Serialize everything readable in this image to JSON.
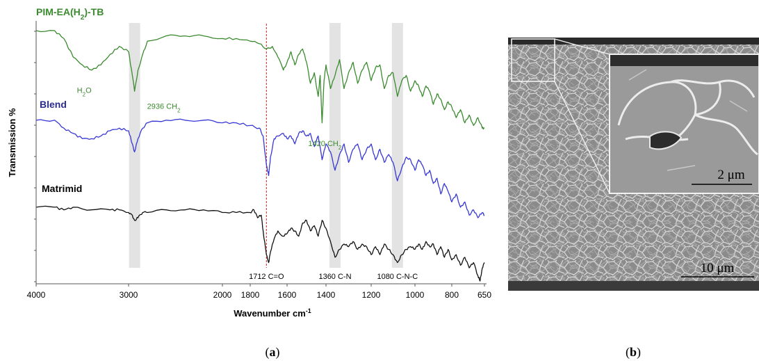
{
  "chart_data": {
    "type": "line",
    "xlabel": "Wavenumber cm",
    "xlabel_sup": "-1",
    "ylabel": "Transmission %",
    "x_reversed": true,
    "x_tick_labels": [
      "4000",
      "3000",
      "2000",
      "1800",
      "1600",
      "1400",
      "1200",
      "1000",
      "800",
      "650"
    ],
    "x_ticks": [
      4000,
      3000,
      2000,
      1800,
      1600,
      1400,
      1200,
      1000,
      800,
      650
    ],
    "highlight_bands": [
      2936,
      1360,
      1080
    ],
    "reference_line": 1712,
    "series": [
      {
        "name": "PIM-EA(H",
        "name_sub": "2",
        "name_tail": ")-TB",
        "color": "#3a8a2e",
        "values": [
          [
            4000,
            0.95
          ],
          [
            3800,
            0.95
          ],
          [
            3700,
            0.92
          ],
          [
            3600,
            0.85
          ],
          [
            3500,
            0.82
          ],
          [
            3400,
            0.8
          ],
          [
            3300,
            0.82
          ],
          [
            3200,
            0.86
          ],
          [
            3100,
            0.89
          ],
          [
            3000,
            0.87
          ],
          [
            2960,
            0.78
          ],
          [
            2936,
            0.72
          ],
          [
            2900,
            0.8
          ],
          [
            2850,
            0.86
          ],
          [
            2800,
            0.91
          ],
          [
            2600,
            0.93
          ],
          [
            2400,
            0.93
          ],
          [
            2200,
            0.93
          ],
          [
            2000,
            0.92
          ],
          [
            1900,
            0.92
          ],
          [
            1800,
            0.91
          ],
          [
            1750,
            0.9
          ],
          [
            1712,
            0.88
          ],
          [
            1680,
            0.89
          ],
          [
            1650,
            0.85
          ],
          [
            1620,
            0.8
          ],
          [
            1600,
            0.83
          ],
          [
            1580,
            0.87
          ],
          [
            1560,
            0.82
          ],
          [
            1540,
            0.86
          ],
          [
            1520,
            0.88
          ],
          [
            1500,
            0.83
          ],
          [
            1480,
            0.75
          ],
          [
            1460,
            0.79
          ],
          [
            1440,
            0.7
          ],
          [
            1430,
            0.78
          ],
          [
            1420,
            0.6
          ],
          [
            1410,
            0.76
          ],
          [
            1400,
            0.82
          ],
          [
            1380,
            0.73
          ],
          [
            1360,
            0.78
          ],
          [
            1340,
            0.84
          ],
          [
            1320,
            0.73
          ],
          [
            1300,
            0.79
          ],
          [
            1280,
            0.83
          ],
          [
            1260,
            0.75
          ],
          [
            1240,
            0.8
          ],
          [
            1220,
            0.83
          ],
          [
            1200,
            0.76
          ],
          [
            1180,
            0.81
          ],
          [
            1160,
            0.82
          ],
          [
            1140,
            0.73
          ],
          [
            1120,
            0.78
          ],
          [
            1100,
            0.79
          ],
          [
            1080,
            0.7
          ],
          [
            1060,
            0.76
          ],
          [
            1040,
            0.78
          ],
          [
            1020,
            0.72
          ],
          [
            1000,
            0.76
          ],
          [
            980,
            0.74
          ],
          [
            960,
            0.7
          ],
          [
            940,
            0.74
          ],
          [
            920,
            0.72
          ],
          [
            900,
            0.67
          ],
          [
            880,
            0.71
          ],
          [
            860,
            0.69
          ],
          [
            840,
            0.65
          ],
          [
            820,
            0.68
          ],
          [
            800,
            0.66
          ],
          [
            780,
            0.62
          ],
          [
            760,
            0.65
          ],
          [
            740,
            0.6
          ],
          [
            720,
            0.63
          ],
          [
            700,
            0.59
          ],
          [
            680,
            0.62
          ],
          [
            660,
            0.58
          ],
          [
            650,
            0.58
          ]
        ]
      },
      {
        "name": "Blend",
        "color": "#3737d6",
        "values": [
          [
            4000,
            0.61
          ],
          [
            3800,
            0.61
          ],
          [
            3700,
            0.58
          ],
          [
            3600,
            0.56
          ],
          [
            3500,
            0.54
          ],
          [
            3400,
            0.54
          ],
          [
            3300,
            0.55
          ],
          [
            3200,
            0.57
          ],
          [
            3100,
            0.58
          ],
          [
            3000,
            0.57
          ],
          [
            2960,
            0.52
          ],
          [
            2936,
            0.49
          ],
          [
            2900,
            0.54
          ],
          [
            2850,
            0.58
          ],
          [
            2800,
            0.6
          ],
          [
            2600,
            0.61
          ],
          [
            2400,
            0.61
          ],
          [
            2200,
            0.61
          ],
          [
            2000,
            0.6
          ],
          [
            1900,
            0.6
          ],
          [
            1800,
            0.59
          ],
          [
            1750,
            0.58
          ],
          [
            1730,
            0.55
          ],
          [
            1712,
            0.44
          ],
          [
            1700,
            0.4
          ],
          [
            1690,
            0.47
          ],
          [
            1670,
            0.54
          ],
          [
            1650,
            0.55
          ],
          [
            1620,
            0.56
          ],
          [
            1600,
            0.54
          ],
          [
            1580,
            0.55
          ],
          [
            1560,
            0.52
          ],
          [
            1540,
            0.56
          ],
          [
            1520,
            0.57
          ],
          [
            1500,
            0.55
          ],
          [
            1480,
            0.56
          ],
          [
            1460,
            0.51
          ],
          [
            1440,
            0.55
          ],
          [
            1420,
            0.46
          ],
          [
            1400,
            0.52
          ],
          [
            1380,
            0.49
          ],
          [
            1360,
            0.42
          ],
          [
            1340,
            0.48
          ],
          [
            1320,
            0.52
          ],
          [
            1300,
            0.45
          ],
          [
            1280,
            0.5
          ],
          [
            1260,
            0.52
          ],
          [
            1240,
            0.46
          ],
          [
            1220,
            0.5
          ],
          [
            1200,
            0.52
          ],
          [
            1180,
            0.46
          ],
          [
            1160,
            0.5
          ],
          [
            1140,
            0.45
          ],
          [
            1120,
            0.48
          ],
          [
            1100,
            0.45
          ],
          [
            1080,
            0.38
          ],
          [
            1060,
            0.43
          ],
          [
            1040,
            0.47
          ],
          [
            1020,
            0.46
          ],
          [
            1000,
            0.42
          ],
          [
            980,
            0.46
          ],
          [
            960,
            0.44
          ],
          [
            940,
            0.4
          ],
          [
            920,
            0.42
          ],
          [
            900,
            0.37
          ],
          [
            880,
            0.39
          ],
          [
            860,
            0.33
          ],
          [
            840,
            0.37
          ],
          [
            820,
            0.34
          ],
          [
            800,
            0.3
          ],
          [
            780,
            0.33
          ],
          [
            760,
            0.28
          ],
          [
            740,
            0.3
          ],
          [
            720,
            0.25
          ],
          [
            700,
            0.27
          ],
          [
            680,
            0.24
          ],
          [
            660,
            0.26
          ],
          [
            650,
            0.25
          ]
        ]
      },
      {
        "name": "Matrimid",
        "color": "#111111",
        "values": [
          [
            4000,
            0.28
          ],
          [
            3800,
            0.28
          ],
          [
            3700,
            0.27
          ],
          [
            3600,
            0.28
          ],
          [
            3400,
            0.27
          ],
          [
            3200,
            0.27
          ],
          [
            3100,
            0.27
          ],
          [
            3000,
            0.26
          ],
          [
            2960,
            0.25
          ],
          [
            2936,
            0.23
          ],
          [
            2900,
            0.24
          ],
          [
            2850,
            0.26
          ],
          [
            2800,
            0.26
          ],
          [
            2600,
            0.27
          ],
          [
            2400,
            0.27
          ],
          [
            2200,
            0.27
          ],
          [
            2000,
            0.26
          ],
          [
            1900,
            0.26
          ],
          [
            1800,
            0.26
          ],
          [
            1780,
            0.27
          ],
          [
            1760,
            0.24
          ],
          [
            1740,
            0.25
          ],
          [
            1730,
            0.19
          ],
          [
            1712,
            0.1
          ],
          [
            1700,
            0.07
          ],
          [
            1690,
            0.11
          ],
          [
            1670,
            0.16
          ],
          [
            1650,
            0.19
          ],
          [
            1620,
            0.17
          ],
          [
            1600,
            0.18
          ],
          [
            1580,
            0.2
          ],
          [
            1560,
            0.19
          ],
          [
            1540,
            0.17
          ],
          [
            1520,
            0.22
          ],
          [
            1500,
            0.23
          ],
          [
            1480,
            0.19
          ],
          [
            1460,
            0.21
          ],
          [
            1440,
            0.17
          ],
          [
            1420,
            0.23
          ],
          [
            1400,
            0.2
          ],
          [
            1380,
            0.15
          ],
          [
            1360,
            0.09
          ],
          [
            1340,
            0.12
          ],
          [
            1320,
            0.14
          ],
          [
            1300,
            0.13
          ],
          [
            1280,
            0.15
          ],
          [
            1260,
            0.12
          ],
          [
            1240,
            0.14
          ],
          [
            1220,
            0.13
          ],
          [
            1200,
            0.1
          ],
          [
            1180,
            0.13
          ],
          [
            1160,
            0.1
          ],
          [
            1140,
            0.14
          ],
          [
            1120,
            0.12
          ],
          [
            1100,
            0.1
          ],
          [
            1080,
            0.07
          ],
          [
            1060,
            0.1
          ],
          [
            1040,
            0.12
          ],
          [
            1020,
            0.13
          ],
          [
            1000,
            0.12
          ],
          [
            980,
            0.14
          ],
          [
            960,
            0.12
          ],
          [
            940,
            0.15
          ],
          [
            920,
            0.13
          ],
          [
            900,
            0.14
          ],
          [
            880,
            0.1
          ],
          [
            860,
            0.13
          ],
          [
            840,
            0.09
          ],
          [
            820,
            0.12
          ],
          [
            800,
            0.08
          ],
          [
            780,
            0.1
          ],
          [
            760,
            0.06
          ],
          [
            740,
            0.09
          ],
          [
            720,
            0.05
          ],
          [
            700,
            0.07
          ],
          [
            680,
            0.02
          ],
          [
            670,
            0.0
          ],
          [
            660,
            0.05
          ],
          [
            650,
            0.07
          ]
        ]
      }
    ],
    "annotations": [
      {
        "text": "H",
        "sub": "2",
        "tail": "O",
        "x": 3450,
        "y": 0.74,
        "series": 0
      },
      {
        "text": "2936 CH",
        "sub": "2",
        "tail": "",
        "x": 2936,
        "y": 0.68,
        "series": 0
      },
      {
        "text": "1420 CH",
        "sub": "2",
        "tail": "",
        "x": 1420,
        "y": 0.56,
        "series": 0
      },
      {
        "text": "1712 C=O",
        "sub": "",
        "tail": "",
        "x": 1712,
        "y": -0.02,
        "series": 2
      },
      {
        "text": "1360 C-N",
        "sub": "",
        "tail": "",
        "x": 1360,
        "y": -0.02,
        "series": 2
      },
      {
        "text": "1080 C-N-C",
        "sub": "",
        "tail": "",
        "x": 1080,
        "y": -0.02,
        "series": 2
      }
    ]
  },
  "micrograph": {
    "inset_scale_label": "2 μm",
    "main_scale_label": "10 μm"
  },
  "captions": {
    "a_open": "(",
    "a_letter": "a",
    "a_close": ")",
    "b_open": "(",
    "b_letter": "b",
    "b_close": ")"
  }
}
